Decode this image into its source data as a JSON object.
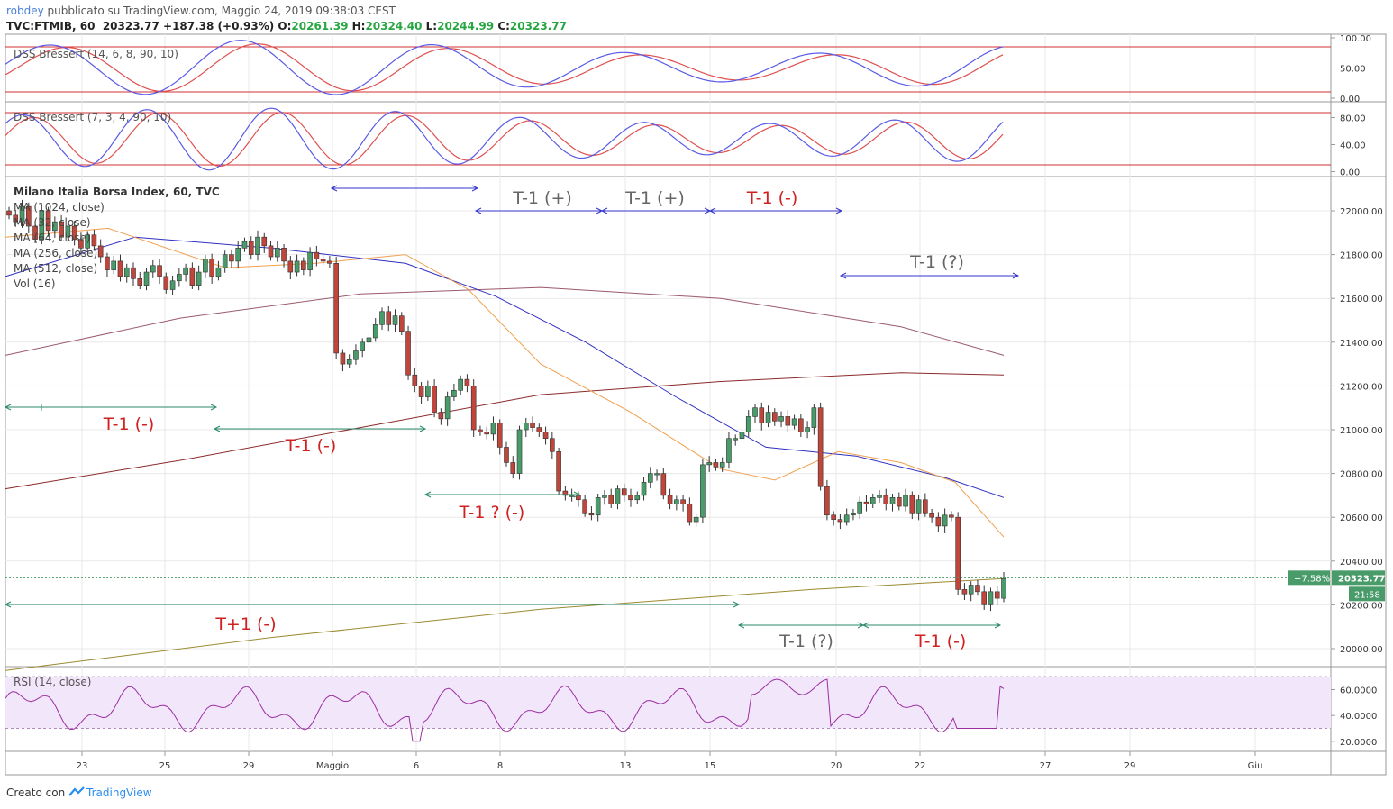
{
  "header": {
    "user": "robdey",
    "published": " pubblicato su TradingView.com, Maggio 24, 2019 09:38:03 CEST",
    "symbol": "TVC:FTMIB, 60",
    "last": "20323.77",
    "change": "+187.38 (+0.93%)",
    "open_label": "O:",
    "open": "20261.39",
    "high_label": "H:",
    "high": "20324.40",
    "low_label": "L:",
    "low": "20244.99",
    "close_label": "C:",
    "close": "20323.77"
  },
  "footer": {
    "created": "Creato con",
    "brand": "TradingView"
  },
  "panes": {
    "dss1": {
      "label": "DSS Bressert (14, 6, 8, 90, 10)",
      "ticks": [
        "100.00",
        "50.00",
        "0.00"
      ]
    },
    "dss2": {
      "label": "DSS Bressert (7, 3, 4, 90, 10)",
      "ticks": [
        "80.00",
        "40.00",
        "0.00"
      ]
    },
    "rsi": {
      "label": "RSI (14, close)",
      "ticks": [
        "60.0000",
        "40.0000",
        "20.0000"
      ]
    }
  },
  "legend": {
    "title": "Milano Italia Borsa Index, 60, TVC",
    "lines": [
      "MA (1024, close)",
      "MA (32, close)",
      "MA (64, close)",
      "MA (256, close)",
      "MA (512, close)",
      "Vol (16)"
    ]
  },
  "price_axis": {
    "ticks": [
      "22000.00",
      "21800.00",
      "21600.00",
      "21400.00",
      "21200.00",
      "21000.00",
      "20800.00",
      "20600.00",
      "20400.00",
      "20200.00",
      "20000.00"
    ],
    "last_badge": "20323.77",
    "pct_badge": "−7.58%",
    "countdown": "21:58"
  },
  "time_axis": [
    "23",
    "25",
    "29",
    "Maggio",
    "6",
    "8",
    "13",
    "15",
    "20",
    "22",
    "27",
    "29",
    "Giu"
  ],
  "annotations": [
    "T-1 (+)",
    "T-1 (+)",
    "T-1 (-)",
    "T-1 (?)",
    "T-1 (-)",
    "T-1 (-)",
    "T-1 ? (-)",
    "T+1 (-)",
    "T-1 (?)",
    "T-1 (-)"
  ],
  "colors": {
    "up": "#4a9b6a",
    "down": "#c0453a",
    "grid": "#e8e8e8",
    "dss_fast": "#5a5ae6",
    "dss_slow": "#e05050",
    "level": "#d03030",
    "rsi_fill": "#f2e6fb",
    "rsi_line": "#9b2fa0"
  },
  "chart_data": {
    "type": "candlestick",
    "symbol": "TVC:FTMIB",
    "interval": "60",
    "y_axis": {
      "min": 20000,
      "max": 22000,
      "tick_step": 200
    },
    "x_labels": [
      "23",
      "25",
      "29",
      "Maggio",
      "6",
      "8",
      "13",
      "15",
      "20",
      "22",
      "27",
      "29",
      "Giu"
    ],
    "ohlc": {
      "open": 20261.39,
      "high": 20324.4,
      "low": 20244.99,
      "close": 20323.77
    },
    "last_price": 20323.77,
    "indicators": [
      "DSS Bressert (14, 6, 8, 90, 10)",
      "DSS Bressert (7, 3, 4, 90, 10)",
      "MA (1024, close)",
      "MA (32, close)",
      "MA (64, close)",
      "MA (256, close)",
      "MA (512, close)",
      "Vol (16)",
      "RSI (14, close)"
    ],
    "dss_levels": {
      "upper": 90,
      "lower": 10
    },
    "rsi_band": {
      "upper": 70,
      "lower": 30
    },
    "ma_endpoints": [
      {
        "name": "MA (32, close)",
        "color": "#f0a050",
        "end_value": 20510
      },
      {
        "name": "MA (64, close)",
        "color": "#3030c0",
        "end_value": 20690
      },
      {
        "name": "MA (256, close)",
        "color": "#9b5a6a",
        "end_value": 21340
      },
      {
        "name": "MA (512, close)",
        "color": "#8b2a2a",
        "end_value": 21250
      },
      {
        "name": "MA (1024, close)",
        "color": "#9b8a30",
        "end_value": 20330
      }
    ],
    "closes": [
      21980,
      21950,
      22020,
      21930,
      21870,
      22000,
      21910,
      21950,
      21880,
      21930,
      21870,
      21830,
      21890,
      21840,
      21790,
      21730,
      21770,
      21700,
      21740,
      21690,
      21660,
      21720,
      21750,
      21700,
      21640,
      21680,
      21710,
      21740,
      21660,
      21720,
      21780,
      21700,
      21740,
      21800,
      21770,
      21830,
      21860,
      21800,
      21880,
      21840,
      21790,
      21830,
      21770,
      21720,
      21770,
      21730,
      21810,
      21780,
      21770,
      21760,
      21350,
      21300,
      21320,
      21360,
      21400,
      21420,
      21480,
      21540,
      21480,
      21520,
      21450,
      21250,
      21200,
      21150,
      21200,
      21080,
      21050,
      21150,
      21180,
      21230,
      21200,
      21000,
      20990,
      20980,
      21030,
      20920,
      20850,
      20800,
      21000,
      21030,
      21010,
      20990,
      20960,
      20900,
      20720,
      20700,
      20700,
      20680,
      20620,
      20610,
      20690,
      20700,
      20660,
      20730,
      20700,
      20680,
      20700,
      20760,
      20800,
      20800,
      20700,
      20660,
      20680,
      20660,
      20580,
      20600,
      20840,
      20850,
      20830,
      20850,
      20960,
      20960,
      20990,
      21060,
      21100,
      21030,
      21080,
      21040,
      21060,
      21020,
      21050,
      20990,
      21010,
      21100,
      20740,
      20610,
      20590,
      20580,
      20610,
      20620,
      20670,
      20660,
      20690,
      20700,
      20660,
      20690,
      20650,
      20700,
      20620,
      20680,
      20620,
      20600,
      20560,
      20610,
      20600,
      20270,
      20250,
      20290,
      20260,
      20200,
      20260,
      20230,
      20320
    ],
    "segments": [
      {
        "label": "T-1 (+)",
        "from_candle": 69,
        "to_candle": 86
      },
      {
        "label": "T-1 (+)",
        "from_candle": 86,
        "to_candle": 103
      },
      {
        "label": "T-1 (-)",
        "from_candle": 103,
        "to_candle": 120
      },
      {
        "label": "T-1 (?)",
        "from_candle": 120,
        "to_candle": 147
      },
      {
        "label": "T-1 (-)",
        "from_candle": 0,
        "to_candle": 30
      },
      {
        "label": "T-1 (-)",
        "from_candle": 30,
        "to_candle": 61
      },
      {
        "label": "T-1 ? (-)",
        "from_candle": 61,
        "to_candle": 84
      },
      {
        "label": "T+1 (-)",
        "from_candle": 0,
        "to_candle": 107
      },
      {
        "label": "T-1 (?)",
        "from_candle": 107,
        "to_candle": 125
      },
      {
        "label": "T-1 (-)",
        "from_candle": 125,
        "to_candle": 145
      }
    ]
  }
}
